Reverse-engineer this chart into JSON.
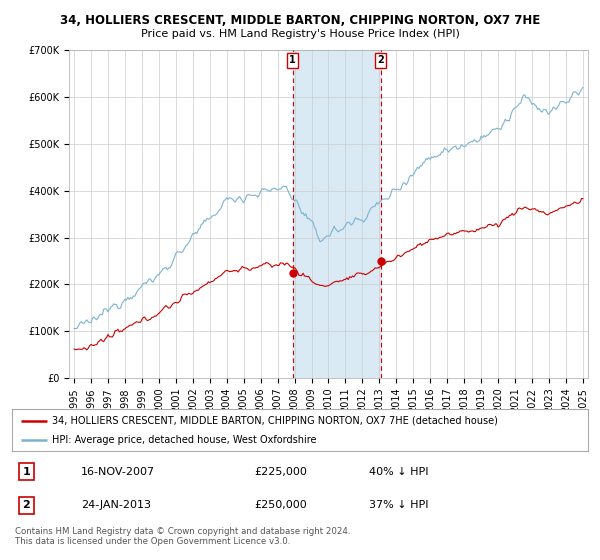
{
  "title": "34, HOLLIERS CRESCENT, MIDDLE BARTON, CHIPPING NORTON, OX7 7HE",
  "subtitle": "Price paid vs. HM Land Registry's House Price Index (HPI)",
  "ylim": [
    0,
    700000
  ],
  "yticks": [
    0,
    100000,
    200000,
    300000,
    400000,
    500000,
    600000,
    700000
  ],
  "ytick_labels": [
    "£0",
    "£100K",
    "£200K",
    "£300K",
    "£400K",
    "£500K",
    "£600K",
    "£700K"
  ],
  "year_start": 1995,
  "year_end": 2025,
  "sale1_date": 2007.88,
  "sale1_price": 225000,
  "sale1_label": "1",
  "sale2_date": 2013.07,
  "sale2_price": 250000,
  "sale2_label": "2",
  "hpi_color": "#7ab3d4",
  "price_color": "#cc0000",
  "shade_color": "#daeaf5",
  "vline_color": "#cc0000",
  "grid_color": "#cccccc",
  "bg_color": "#ffffff",
  "legend_line1": "34, HOLLIERS CRESCENT, MIDDLE BARTON, CHIPPING NORTON, OX7 7HE (detached house)",
  "legend_line2": "HPI: Average price, detached house, West Oxfordshire",
  "table_row1": [
    "1",
    "16-NOV-2007",
    "£225,000",
    "40% ↓ HPI"
  ],
  "table_row2": [
    "2",
    "24-JAN-2013",
    "£250,000",
    "37% ↓ HPI"
  ],
  "footer": "Contains HM Land Registry data © Crown copyright and database right 2024.\nThis data is licensed under the Open Government Licence v3.0.",
  "title_fontsize": 8.5,
  "subtitle_fontsize": 8,
  "tick_fontsize": 7,
  "legend_fontsize": 7.5
}
